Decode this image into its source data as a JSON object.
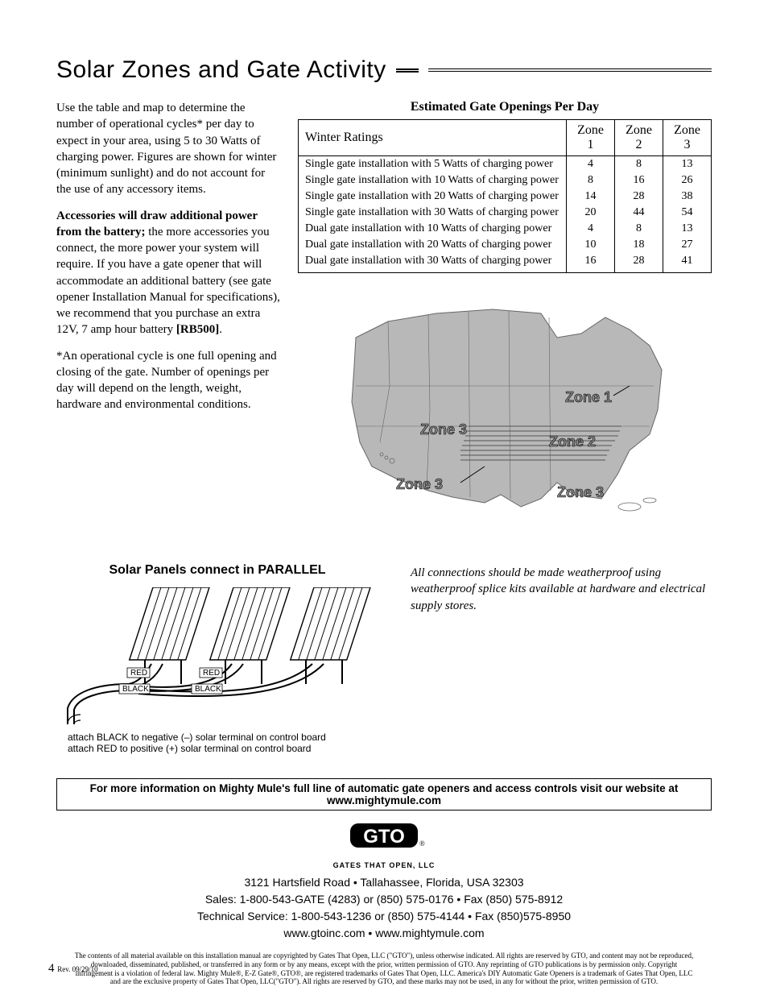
{
  "title": "Solar Zones and Gate Activity",
  "left": {
    "p1": "Use the table and map to determine the number of operational cycles* per day to expect in your area, using 5 to 30 Watts of charging power. Figures are shown for winter (minimum sunlight) and do not account for the use of any accessory items.",
    "p2a": "Accessories will draw additional power from the battery;",
    "p2b": " the more accessories you connect, the more power your system will require. If you have a gate opener that will accommodate an additional battery (see gate opener Installation Manual for specifications), we recommend that you purchase an extra 12V, 7 amp hour battery ",
    "p2c": "[RB500]",
    "p2d": ".",
    "p3": "*An operational cycle is one full opening and closing of the gate. Number of openings per day will depend on the length, weight, hardware and environmental conditions."
  },
  "table": {
    "caption": "Estimated Gate Openings Per Day",
    "header": "Winter Ratings",
    "zone1": "Zone 1",
    "zone2": "Zone 2",
    "zone3": "Zone 3",
    "rows": [
      {
        "label": "Single gate installation with 5 Watts of charging power",
        "z1": "4",
        "z2": "8",
        "z3": "13"
      },
      {
        "label": "Single gate installation with 10 Watts of charging power",
        "z1": "8",
        "z2": "16",
        "z3": "26"
      },
      {
        "label": "Single gate installation with 20 Watts of charging power",
        "z1": "14",
        "z2": "28",
        "z3": "38"
      },
      {
        "label": "Single gate installation with 30 Watts of charging power",
        "z1": "20",
        "z2": "44",
        "z3": "54"
      },
      {
        "label": "Dual gate installation with 10 Watts of charging power",
        "z1": "4",
        "z2": "8",
        "z3": "13"
      },
      {
        "label": "Dual gate installation with 20 Watts of charging power",
        "z1": "10",
        "z2": "18",
        "z3": "27"
      },
      {
        "label": "Dual gate installation with 30 Watts of charging power",
        "z1": "16",
        "z2": "28",
        "z3": "41"
      }
    ]
  },
  "map": {
    "labels": {
      "z1": "Zone 1",
      "z2": "Zone 2",
      "z3a": "Zone 3",
      "z3b": "Zone 3",
      "z3c": "Zone 3"
    }
  },
  "panels": {
    "title": "Solar Panels connect in PARALLEL",
    "red": "RED",
    "black": "BLACK",
    "attach1": "attach BLACK to negative (–) solar terminal on control board",
    "attach2": "attach RED to positive (+) solar terminal on control board"
  },
  "note": "All connections should be made weatherproof using weatherproof splice kits available at hardware and electrical supply stores.",
  "infobar": "For more information on Mighty Mule's full line of automatic gate openers and access controls visit our website at www.mightymule.com",
  "logo": {
    "main": "GTO",
    "sub": "GATES THAT OPEN, LLC",
    "reg": "®"
  },
  "addr": {
    "l1": "3121 Hartsfield Road • Tallahassee, Florida, USA 32303",
    "l2": "Sales: 1-800-543-GATE (4283) or (850) 575-0176 • Fax (850) 575-8912",
    "l3": "Technical Service: 1-800-543-1236 or (850) 575-4144 • Fax (850)575-8950",
    "l4": "www.gtoinc.com • www.mightymule.com"
  },
  "legal": "The contents of all material available on this installation manual are copyrighted by Gates That Open, LLC (\"GTO\"), unless otherwise indicated. All rights are reserved by GTO, and content may not be reproduced, downloaded, disseminated, published, or transferred in any form or by any means, except with the prior, written permission of GTO. Any reprinting of GTO publications is by permission only. Copyright infringement is a violation of federal law. Mighty Mule®, E-Z Gate®, GTO®, are registered trademarks of Gates That Open, LLC. America's DIY Automatic Gate Openers is a trademark of Gates That Open, LLC and are the exclusive property of Gates That Open, LLC(\"GTO\"). All rights are reserved by GTO, and these marks may not be used, in any for without the prior, written permission of GTO.",
  "page": {
    "num": "4",
    "rev": "Rev. 09/29/10"
  },
  "colors": {
    "map_fill": "#b8b8b8",
    "map_stroke": "#666666",
    "zone_fill": "#888888",
    "logo_bg": "#000000"
  }
}
